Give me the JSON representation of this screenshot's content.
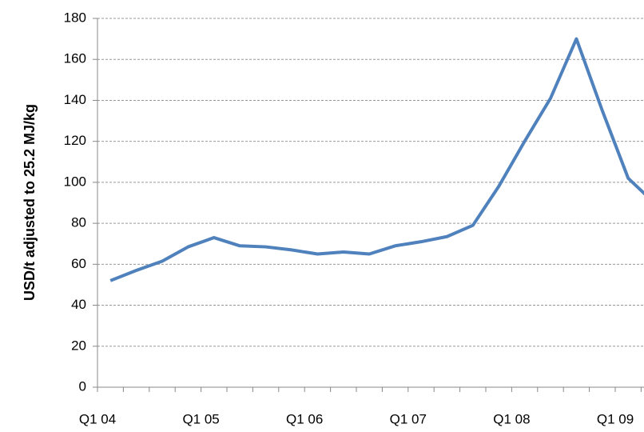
{
  "chart_data": {
    "type": "line",
    "y_label": "USD/t adjusted to 25.2 MJ/kg",
    "categories": [
      "Q1 04",
      null,
      null,
      null,
      "Q1 05",
      null,
      null,
      null,
      "Q1 06",
      null,
      null,
      null,
      "Q1 07",
      null,
      null,
      null,
      "Q1 08",
      null,
      null,
      null,
      "Q1 09",
      null
    ],
    "series": [
      {
        "color": "#4f81bd",
        "values": [
          52,
          57,
          61.5,
          68.5,
          73,
          69,
          68.5,
          67,
          65,
          66,
          65,
          69,
          71,
          73.5,
          79,
          98,
          120,
          141,
          170,
          135,
          102,
          90
        ]
      }
    ],
    "ylim": [
      0,
      180
    ],
    "yticks": [
      0,
      20,
      40,
      60,
      80,
      100,
      120,
      140,
      160,
      180
    ],
    "grid": true
  }
}
